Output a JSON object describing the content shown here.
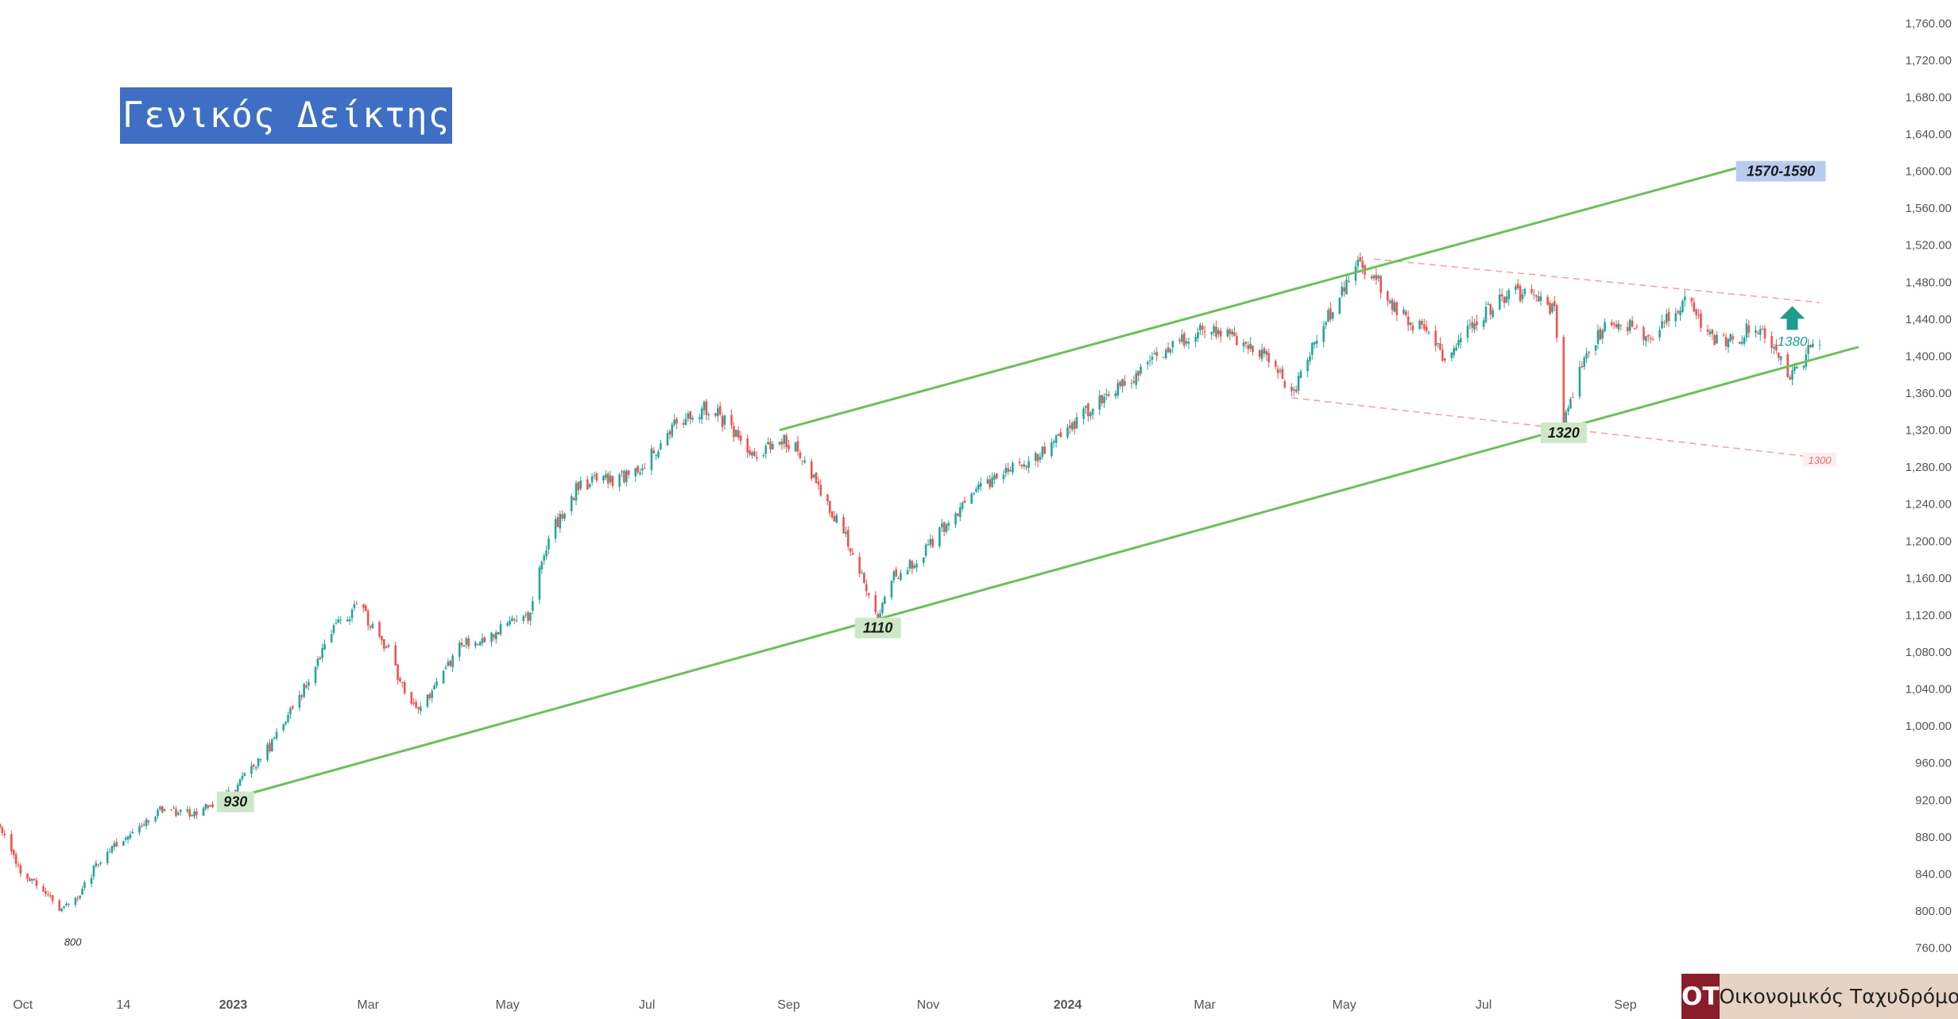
{
  "title": "Γενικός Δείκτης",
  "logo": {
    "mark": "OT",
    "name": "Οικονομικός Ταχυδρόμος",
    "mark_color": "#8b1c2a",
    "name_bg": "#e6d3c4"
  },
  "colors": {
    "up": "#26a69a",
    "down": "#ef5350",
    "channel": "#6dbf5b",
    "dashed": "#f2a3a8",
    "target_label_bg": "#b9ccf0",
    "support_label_bg": "#cde8c7",
    "arrow": "#1e9c8c"
  },
  "chart_data": {
    "type": "candlestick",
    "title": "Γενικός Δείκτης",
    "xlabel": "",
    "ylabel": "",
    "x_range": [
      "2022-09-21",
      "2024-11-25"
    ],
    "ylim": [
      745,
      1780
    ],
    "y_ticks": [
      "1,760.00",
      "1,720.00",
      "1,680.00",
      "1,640.00",
      "1,600.00",
      "1,560.00",
      "1,520.00",
      "1,480.00",
      "1,440.00",
      "1,400.00",
      "1,360.00",
      "1,320.00",
      "1,280.00",
      "1,240.00",
      "1,200.00",
      "1,160.00",
      "1,120.00",
      "1,080.00",
      "1,040.00",
      "1,000.00",
      "960.00",
      "920.00",
      "880.00",
      "840.00",
      "800.00",
      "760.00"
    ],
    "x_ticks": [
      {
        "label": "Oct",
        "date": "2022-10-01"
      },
      {
        "label": "14",
        "date": "2022-11-14"
      },
      {
        "label": "2023",
        "date": "2023-01-01"
      },
      {
        "label": "Mar",
        "date": "2023-03-01"
      },
      {
        "label": "May",
        "date": "2023-05-01"
      },
      {
        "label": "Jul",
        "date": "2023-07-01"
      },
      {
        "label": "Sep",
        "date": "2023-09-01"
      },
      {
        "label": "Nov",
        "date": "2023-11-01"
      },
      {
        "label": "2024",
        "date": "2024-01-01"
      },
      {
        "label": "Mar",
        "date": "2024-03-01"
      },
      {
        "label": "May",
        "date": "2024-05-01"
      },
      {
        "label": "Jul",
        "date": "2024-07-01"
      },
      {
        "label": "Sep",
        "date": "2024-09-01"
      }
    ],
    "price_path": [
      [
        "2022-09-21",
        895
      ],
      [
        "2022-10-01",
        835
      ],
      [
        "2022-10-10",
        825
      ],
      [
        "2022-10-18",
        800
      ],
      [
        "2022-10-25",
        815
      ],
      [
        "2022-11-01",
        845
      ],
      [
        "2022-11-10",
        870
      ],
      [
        "2022-11-20",
        885
      ],
      [
        "2022-12-01",
        910
      ],
      [
        "2022-12-15",
        905
      ],
      [
        "2023-01-01",
        930
      ],
      [
        "2023-01-15",
        970
      ],
      [
        "2023-02-01",
        1040
      ],
      [
        "2023-02-15",
        1110
      ],
      [
        "2023-02-25",
        1130
      ],
      [
        "2023-03-10",
        1080
      ],
      [
        "2023-03-20",
        1020
      ],
      [
        "2023-03-28",
        1030
      ],
      [
        "2023-04-10",
        1090
      ],
      [
        "2023-04-20",
        1095
      ],
      [
        "2023-05-01",
        1110
      ],
      [
        "2023-05-10",
        1120
      ],
      [
        "2023-05-20",
        1210
      ],
      [
        "2023-06-01",
        1260
      ],
      [
        "2023-06-10",
        1265
      ],
      [
        "2023-06-25",
        1270
      ],
      [
        "2023-07-05",
        1300
      ],
      [
        "2023-07-15",
        1330
      ],
      [
        "2023-07-28",
        1345
      ],
      [
        "2023-08-08",
        1320
      ],
      [
        "2023-08-18",
        1290
      ],
      [
        "2023-08-28",
        1310
      ],
      [
        "2023-09-05",
        1300
      ],
      [
        "2023-09-15",
        1250
      ],
      [
        "2023-09-25",
        1210
      ],
      [
        "2023-10-05",
        1150
      ],
      [
        "2023-10-10",
        1115
      ],
      [
        "2023-10-16",
        1160
      ],
      [
        "2023-10-28",
        1180
      ],
      [
        "2023-11-08",
        1215
      ],
      [
        "2023-11-20",
        1250
      ],
      [
        "2023-12-01",
        1270
      ],
      [
        "2023-12-15",
        1285
      ],
      [
        "2024-01-01",
        1320
      ],
      [
        "2024-01-15",
        1355
      ],
      [
        "2024-02-01",
        1380
      ],
      [
        "2024-02-15",
        1410
      ],
      [
        "2024-03-01",
        1430
      ],
      [
        "2024-03-15",
        1420
      ],
      [
        "2024-03-28",
        1400
      ],
      [
        "2024-04-05",
        1370
      ],
      [
        "2024-04-10",
        1365
      ],
      [
        "2024-04-18",
        1420
      ],
      [
        "2024-04-28",
        1460
      ],
      [
        "2024-05-06",
        1500
      ],
      [
        "2024-05-14",
        1485
      ],
      [
        "2024-05-24",
        1450
      ],
      [
        "2024-06-03",
        1430
      ],
      [
        "2024-06-13",
        1400
      ],
      [
        "2024-06-23",
        1430
      ],
      [
        "2024-07-03",
        1450
      ],
      [
        "2024-07-13",
        1470
      ],
      [
        "2024-07-23",
        1460
      ],
      [
        "2024-08-01",
        1450
      ],
      [
        "2024-08-05",
        1325
      ],
      [
        "2024-08-12",
        1390
      ],
      [
        "2024-08-22",
        1430
      ],
      [
        "2024-09-01",
        1435
      ],
      [
        "2024-09-10",
        1420
      ],
      [
        "2024-09-20",
        1440
      ],
      [
        "2024-09-28",
        1465
      ],
      [
        "2024-10-08",
        1420
      ],
      [
        "2024-10-18",
        1415
      ],
      [
        "2024-10-28",
        1435
      ],
      [
        "2024-11-07",
        1395
      ],
      [
        "2024-11-13",
        1380
      ],
      [
        "2024-11-20",
        1405
      ],
      [
        "2024-11-25",
        1408
      ]
    ],
    "trendlines": [
      {
        "name": "upper_channel",
        "style": "solid",
        "from": [
          "2023-08-28",
          1320
        ],
        "to": [
          "2024-10-22",
          1605
        ]
      },
      {
        "name": "lower_channel",
        "style": "solid",
        "from": [
          "2022-12-29",
          920
        ],
        "to": [
          "2024-12-12",
          1410
        ]
      },
      {
        "name": "upper_dashed",
        "style": "dashed",
        "from": [
          "2024-05-14",
          1505
        ],
        "to": [
          "2024-11-25",
          1458
        ]
      },
      {
        "name": "lower_dashed",
        "style": "dashed",
        "from": [
          "2024-04-08",
          1355
        ],
        "to": [
          "2024-11-25",
          1290
        ]
      }
    ],
    "annotations": [
      {
        "text": "1570-1590",
        "date": "2024-11-08",
        "y": 1600,
        "kind": "target"
      },
      {
        "text": "930",
        "date": "2023-01-02",
        "y": 918,
        "kind": "support"
      },
      {
        "text": "1110",
        "date": "2023-10-10",
        "y": 1106,
        "kind": "support"
      },
      {
        "text": "1320",
        "date": "2024-08-05",
        "y": 1317,
        "kind": "support"
      },
      {
        "text": "1380",
        "date": "2024-11-13",
        "y": 1370,
        "kind": "arrow"
      },
      {
        "text": "1300",
        "date": "2024-11-25",
        "y": 1288,
        "kind": "dashed"
      },
      {
        "text": "800",
        "date": "2022-10-18",
        "y": 790,
        "kind": "low"
      }
    ]
  }
}
